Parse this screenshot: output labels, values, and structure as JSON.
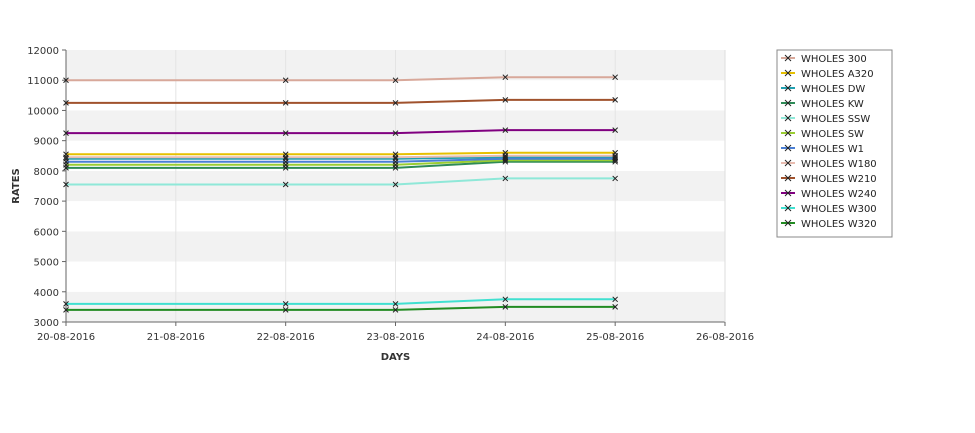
{
  "chart_data": {
    "type": "line",
    "xlabel": "DAYS",
    "ylabel": "RATES",
    "ylim": [
      3000,
      12000
    ],
    "yticks": [
      3000,
      4000,
      5000,
      6000,
      7000,
      8000,
      9000,
      10000,
      11000,
      12000
    ],
    "xlim": [
      "20-08-2016",
      "26-08-2016"
    ],
    "xticks": [
      "20-08-2016",
      "21-08-2016",
      "22-08-2016",
      "23-08-2016",
      "24-08-2016",
      "25-08-2016",
      "26-08-2016"
    ],
    "grid": "alternating horizontal bands",
    "legend_position": "right",
    "x": [
      "20-08-2016",
      "22-08-2016",
      "23-08-2016",
      "24-08-2016",
      "25-08-2016"
    ],
    "series": [
      {
        "name": "WHOLES 300",
        "color": "#d8a89a",
        "values": [
          11000,
          11000,
          11000,
          11100,
          11100
        ]
      },
      {
        "name": "WHOLES A320",
        "color": "#e6c000",
        "values": [
          8550,
          8550,
          8550,
          8600,
          8600
        ]
      },
      {
        "name": "WHOLES DW",
        "color": "#20a0b0",
        "values": [
          8400,
          8400,
          8400,
          8450,
          8450
        ]
      },
      {
        "name": "WHOLES KW",
        "color": "#2e8b57",
        "values": [
          8100,
          8100,
          8100,
          8300,
          8300
        ]
      },
      {
        "name": "WHOLES SSW",
        "color": "#8fe8d8",
        "values": [
          7550,
          7550,
          7550,
          7750,
          7750
        ]
      },
      {
        "name": "WHOLES SW",
        "color": "#9acd32",
        "values": [
          8200,
          8200,
          8200,
          8350,
          8350
        ]
      },
      {
        "name": "WHOLES W1",
        "color": "#4a7fd4",
        "values": [
          8300,
          8300,
          8300,
          8400,
          8400
        ]
      },
      {
        "name": "WHOLES W180",
        "color": "#e8bcb0",
        "values": [
          8450,
          8450,
          8450,
          8500,
          8500
        ]
      },
      {
        "name": "WHOLES W210",
        "color": "#a0522d",
        "values": [
          10250,
          10250,
          10250,
          10350,
          10350
        ]
      },
      {
        "name": "WHOLES W240",
        "color": "#800080",
        "values": [
          9250,
          9250,
          9250,
          9350,
          9350
        ]
      },
      {
        "name": "WHOLES W300",
        "color": "#40e0d0",
        "values": [
          3600,
          3600,
          3600,
          3750,
          3750
        ]
      },
      {
        "name": "WHOLES W320",
        "color": "#228b22",
        "values": [
          3400,
          3400,
          3400,
          3500,
          3500
        ]
      }
    ]
  }
}
